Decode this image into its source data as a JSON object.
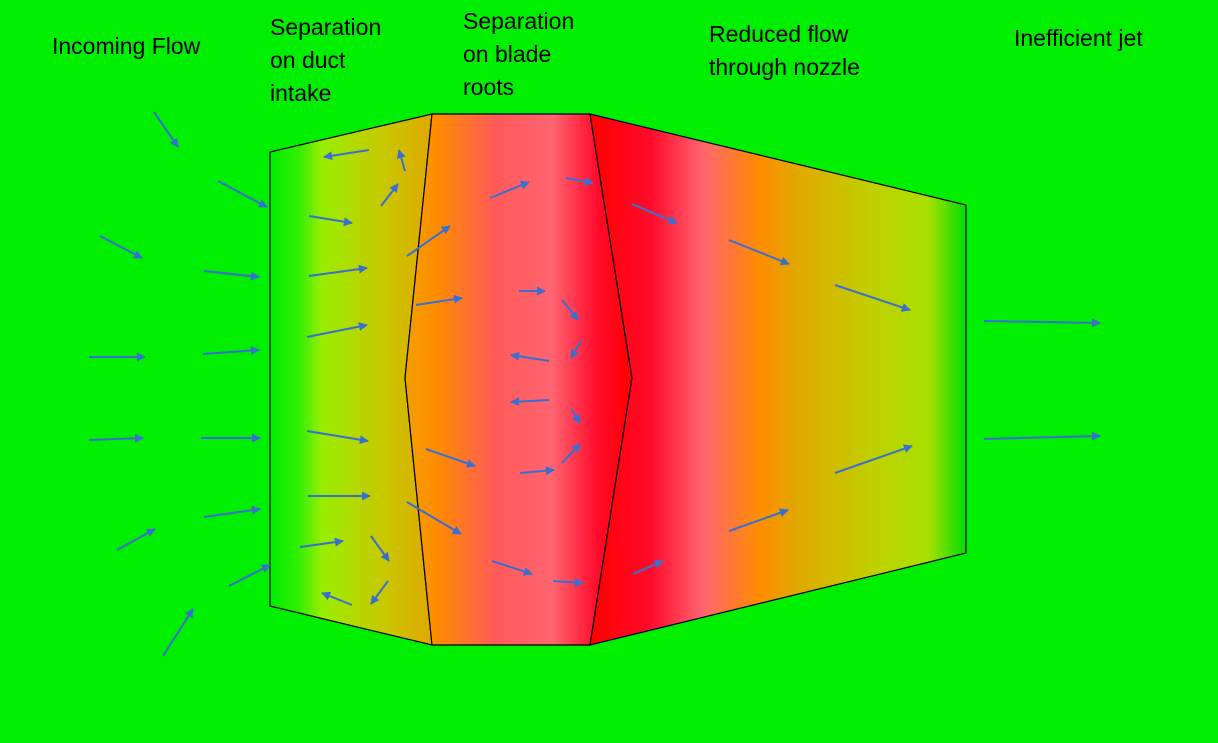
{
  "labels": {
    "incoming_flow": "Incoming Flow",
    "duct_intake": "Separation\non duct\nintake",
    "blade_roots": "Separation\non blade\nroots",
    "nozzle": "Reduced flow\nthrough nozzle",
    "jet": "Inefficient jet"
  },
  "colors": {
    "background": "#00ee00",
    "arrow": "#3a6fd0",
    "outline": "#000000",
    "separation_high": "#ff0000",
    "separation_mid": "#ff8c00",
    "separation_low": "#a8e000"
  }
}
